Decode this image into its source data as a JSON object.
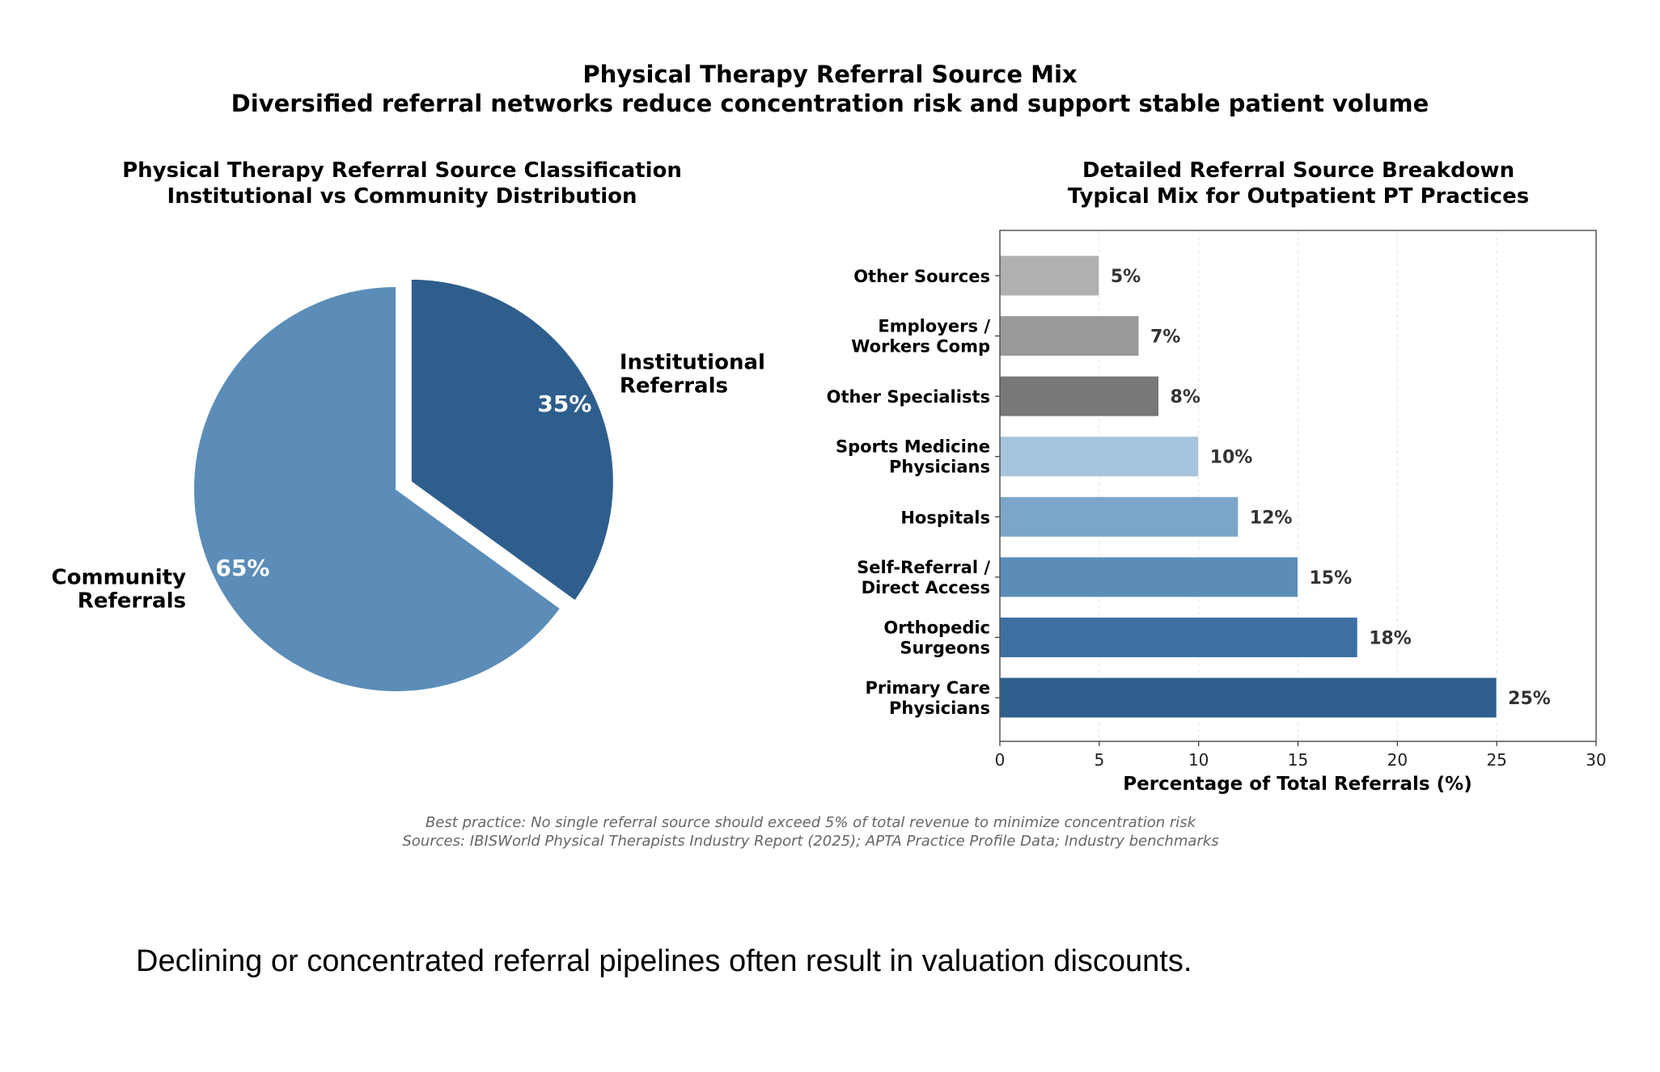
{
  "title": "Physical Therapy Referral Source Mix",
  "subtitle": "Diversified referral networks reduce concentration risk and support stable patient volume",
  "chart_data": [
    {
      "type": "pie",
      "title": [
        "Physical Therapy Referral Source Classification",
        "Institutional vs Community Distribution"
      ],
      "slices": [
        {
          "label": [
            "Institutional",
            "Referrals"
          ],
          "value": 35,
          "pct_label": "35%",
          "color": "#2e5e8c",
          "exploded": true
        },
        {
          "label": [
            "Community",
            "Referrals"
          ],
          "value": 65,
          "pct_label": "65%",
          "color": "#5b8db8",
          "exploded": false
        }
      ],
      "start_angle": 90,
      "direction": "clockwise"
    },
    {
      "type": "bar",
      "orientation": "horizontal",
      "title": [
        "Detailed Referral Source Breakdown",
        "Typical Mix for Outpatient PT Practices"
      ],
      "categories": [
        [
          "Primary Care",
          "Physicians"
        ],
        [
          "Orthopedic",
          "Surgeons"
        ],
        [
          "Self-Referral /",
          "Direct Access"
        ],
        [
          "Hospitals"
        ],
        [
          "Sports Medicine",
          "Physicians"
        ],
        [
          "Other Specialists"
        ],
        [
          "Employers /",
          "Workers Comp"
        ],
        [
          "Other Sources"
        ]
      ],
      "values": [
        25,
        18,
        15,
        12,
        10,
        8,
        7,
        5
      ],
      "value_labels": [
        "25%",
        "18%",
        "15%",
        "12%",
        "10%",
        "8%",
        "7%",
        "5%"
      ],
      "colors": [
        "#2e5e8c",
        "#3d6fa3",
        "#5b8db8",
        "#7ba6c9",
        "#a6c4db",
        "#787878",
        "#999999",
        "#b0b0b0"
      ],
      "xlabel": "Percentage of Total Referrals (%)",
      "xlim": [
        0,
        30
      ],
      "xticks": [
        "0",
        "5",
        "10",
        "15",
        "20",
        "25",
        "30"
      ],
      "grid": "x-dashed"
    }
  ],
  "footnotes": [
    "Best practice: No single referral source should exceed 5% of total revenue to minimize concentration risk",
    "Sources: IBISWorld Physical Therapists Industry Report (2025); APTA Practice Profile Data; Industry benchmarks"
  ],
  "caption": "Declining or concentrated referral pipelines often result in valuation discounts."
}
